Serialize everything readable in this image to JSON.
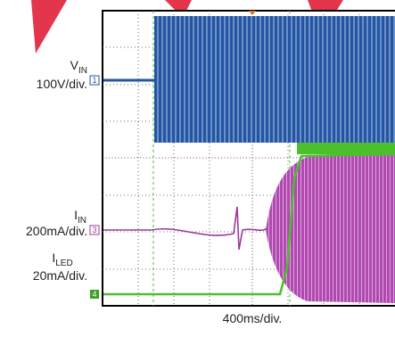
{
  "channels": [
    {
      "name": "V",
      "sub": "IN",
      "scale": "100V/div.",
      "marker": "1"
    },
    {
      "name": "I",
      "sub": "IN",
      "scale": "200mA/div.",
      "marker": "3"
    },
    {
      "name": "I",
      "sub": "LED",
      "scale": "20mA/div.",
      "marker": "4"
    }
  ],
  "timebase": "400ms/div."
}
